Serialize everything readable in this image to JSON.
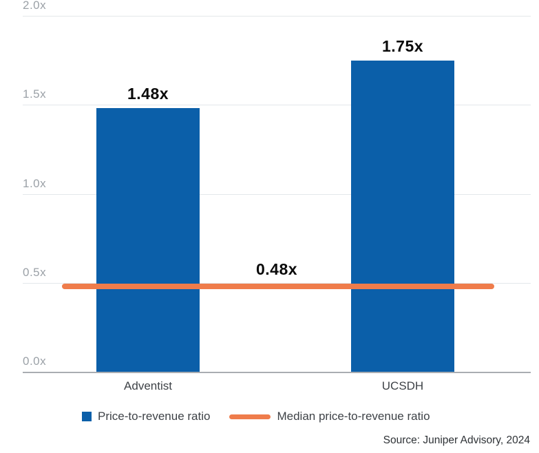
{
  "chart_data": {
    "type": "bar",
    "title": "",
    "xlabel": "",
    "ylabel": "",
    "categories": [
      "Adventist",
      "UCSDH"
    ],
    "values": [
      1.48,
      1.75
    ],
    "bar_labels": [
      "1.48x",
      "1.75x"
    ],
    "median_line": {
      "value": 0.48,
      "label": "0.48x"
    },
    "ylim": [
      0,
      2.0
    ],
    "yticks": [
      {
        "label": "2.0x",
        "value": 2.0
      },
      {
        "label": "1.5x",
        "value": 1.5
      },
      {
        "label": "1.0x",
        "value": 1.0
      },
      {
        "label": "0.5x",
        "value": 0.5
      },
      {
        "label": "0.0x",
        "value": 0.0
      }
    ],
    "grid": "horizontal",
    "legend_position": "bottom",
    "legend": [
      {
        "label": "Price-to-revenue ratio",
        "marker": "square",
        "color": "#0b5fa9"
      },
      {
        "label": "Median price-to-revenue ratio",
        "marker": "line",
        "color": "#ef7c4b"
      }
    ],
    "colors": {
      "bar": "#0b5fa9",
      "median": "#ef7c4b",
      "gridline": "#e3e7ea",
      "axis_line": "#a9adb1"
    }
  },
  "source": "Source: Juniper Advisory, 2024"
}
